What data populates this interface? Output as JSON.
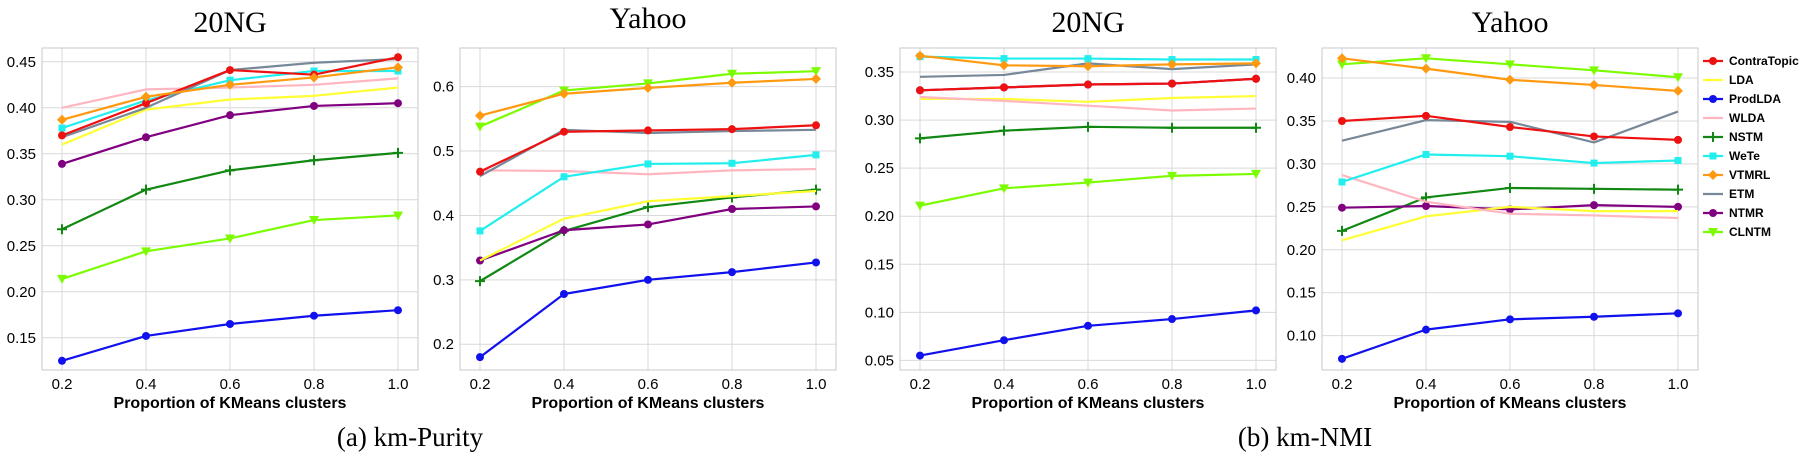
{
  "captions": [
    "(a) km-Purity",
    "(b) km-NMI"
  ],
  "legend": [
    {
      "name": "ContraTopic",
      "color": "#ee1111",
      "marker": "circle"
    },
    {
      "name": "LDA",
      "color": "#ffff33",
      "marker": "none"
    },
    {
      "name": "ProdLDA",
      "color": "#1111ee",
      "marker": "circle"
    },
    {
      "name": "WLDA",
      "color": "#ffb6c1",
      "marker": "none"
    },
    {
      "name": "NSTM",
      "color": "#118811",
      "marker": "plus"
    },
    {
      "name": "WeTe",
      "color": "#22eeee",
      "marker": "square"
    },
    {
      "name": "VTMRL",
      "color": "#ff9910",
      "marker": "diamond"
    },
    {
      "name": "ETM",
      "color": "#778899",
      "marker": "none"
    },
    {
      "name": "NTMR",
      "color": "#800080",
      "marker": "circle"
    },
    {
      "name": "CLNTM",
      "color": "#7cfc00",
      "marker": "triangle"
    }
  ],
  "chart_data": [
    {
      "type": "line",
      "title": "20NG",
      "xlabel": "Proportion of KMeans clusters",
      "ylabel": "",
      "x": [
        0.2,
        0.4,
        0.6,
        0.8,
        1.0
      ],
      "xticks": [
        "0.2",
        "0.4",
        "0.6",
        "0.8",
        "1.0"
      ],
      "ylim": [
        0.115,
        0.465
      ],
      "yticks": [
        "0.15",
        "0.20",
        "0.25",
        "0.30",
        "0.35",
        "0.40",
        "0.45"
      ],
      "grid": true,
      "series": [
        {
          "name": "ContraTopic",
          "values": [
            0.37,
            0.405,
            0.441,
            0.436,
            0.455
          ]
        },
        {
          "name": "LDA",
          "values": [
            0.36,
            0.398,
            0.409,
            0.413,
            0.422
          ]
        },
        {
          "name": "ProdLDA",
          "values": [
            0.125,
            0.152,
            0.165,
            0.174,
            0.18
          ]
        },
        {
          "name": "WLDA",
          "values": [
            0.4,
            0.42,
            0.422,
            0.425,
            0.432
          ]
        },
        {
          "name": "NSTM",
          "values": [
            0.268,
            0.311,
            0.332,
            0.343,
            0.351
          ]
        },
        {
          "name": "WeTe",
          "values": [
            0.378,
            0.408,
            0.43,
            0.44,
            0.44
          ]
        },
        {
          "name": "VTMRL",
          "values": [
            0.387,
            0.412,
            0.425,
            0.433,
            0.444
          ]
        },
        {
          "name": "ETM",
          "values": [
            0.368,
            0.4,
            0.441,
            0.449,
            0.453
          ]
        },
        {
          "name": "NTMR",
          "values": [
            0.339,
            0.368,
            0.392,
            0.402,
            0.405
          ]
        },
        {
          "name": "CLNTM",
          "values": [
            0.214,
            0.244,
            0.258,
            0.278,
            0.283
          ]
        }
      ]
    },
    {
      "type": "line",
      "title": "Yahoo",
      "xlabel": "Proportion of KMeans clusters",
      "ylabel": "",
      "x": [
        0.2,
        0.4,
        0.6,
        0.8,
        1.0
      ],
      "xticks": [
        "0.2",
        "0.4",
        "0.6",
        "0.8",
        "1.0"
      ],
      "ylim": [
        0.16,
        0.66
      ],
      "yticks": [
        "0.2",
        "0.3",
        "0.4",
        "0.5",
        "0.6"
      ],
      "grid": true,
      "series": [
        {
          "name": "ContraTopic",
          "values": [
            0.468,
            0.53,
            0.532,
            0.534,
            0.54
          ]
        },
        {
          "name": "LDA",
          "values": [
            0.33,
            0.395,
            0.422,
            0.43,
            0.438
          ]
        },
        {
          "name": "ProdLDA",
          "values": [
            0.18,
            0.278,
            0.3,
            0.312,
            0.327
          ]
        },
        {
          "name": "WLDA",
          "values": [
            0.47,
            0.469,
            0.464,
            0.47,
            0.472
          ]
        },
        {
          "name": "NSTM",
          "values": [
            0.298,
            0.376,
            0.413,
            0.428,
            0.44
          ]
        },
        {
          "name": "WeTe",
          "values": [
            0.376,
            0.46,
            0.48,
            0.481,
            0.494
          ]
        },
        {
          "name": "VTMRL",
          "values": [
            0.555,
            0.589,
            0.598,
            0.606,
            0.612
          ]
        },
        {
          "name": "ETM",
          "values": [
            0.461,
            0.533,
            0.528,
            0.531,
            0.533
          ]
        },
        {
          "name": "NTMR",
          "values": [
            0.33,
            0.377,
            0.386,
            0.41,
            0.414
          ]
        },
        {
          "name": "CLNTM",
          "values": [
            0.538,
            0.594,
            0.605,
            0.62,
            0.624
          ]
        }
      ]
    },
    {
      "type": "line",
      "title": "20NG",
      "xlabel": "Proportion of KMeans clusters",
      "ylabel": "",
      "x": [
        0.2,
        0.4,
        0.6,
        0.8,
        1.0
      ],
      "xticks": [
        "0.2",
        "0.4",
        "0.6",
        "0.8",
        "1.0"
      ],
      "ylim": [
        0.04,
        0.375
      ],
      "yticks": [
        "0.05",
        "0.10",
        "0.15",
        "0.20",
        "0.25",
        "0.30",
        "0.35"
      ],
      "grid": true,
      "series": [
        {
          "name": "ContraTopic",
          "values": [
            0.331,
            0.334,
            0.337,
            0.338,
            0.343
          ]
        },
        {
          "name": "LDA",
          "values": [
            0.322,
            0.322,
            0.319,
            0.323,
            0.325
          ]
        },
        {
          "name": "ProdLDA",
          "values": [
            0.055,
            0.071,
            0.086,
            0.093,
            0.102
          ]
        },
        {
          "name": "WLDA",
          "values": [
            0.324,
            0.32,
            0.315,
            0.31,
            0.312
          ]
        },
        {
          "name": "NSTM",
          "values": [
            0.281,
            0.289,
            0.293,
            0.292,
            0.292
          ]
        },
        {
          "name": "WeTe",
          "values": [
            0.366,
            0.364,
            0.364,
            0.363,
            0.363
          ]
        },
        {
          "name": "VTMRL",
          "values": [
            0.367,
            0.357,
            0.356,
            0.358,
            0.359
          ]
        },
        {
          "name": "ETM",
          "values": [
            0.345,
            0.347,
            0.359,
            0.353,
            0.358
          ]
        },
        {
          "name": "NTMR",
          "values": [
            0.331,
            0.334,
            0.337,
            0.338,
            0.343
          ]
        },
        {
          "name": "CLNTM",
          "values": [
            0.211,
            0.229,
            0.235,
            0.242,
            0.244
          ]
        }
      ]
    },
    {
      "type": "line",
      "title": "Yahoo",
      "xlabel": "Proportion of KMeans clusters",
      "ylabel": "",
      "x": [
        0.2,
        0.4,
        0.6,
        0.8,
        1.0
      ],
      "xticks": [
        "0.2",
        "0.4",
        "0.6",
        "0.8",
        "1.0"
      ],
      "ylim": [
        0.06,
        0.435
      ],
      "yticks": [
        "0.10",
        "0.15",
        "0.20",
        "0.25",
        "0.30",
        "0.35",
        "0.40"
      ],
      "grid": true,
      "series": [
        {
          "name": "ContraTopic",
          "values": [
            0.35,
            0.356,
            0.343,
            0.332,
            0.328
          ]
        },
        {
          "name": "LDA",
          "values": [
            0.211,
            0.239,
            0.25,
            0.245,
            0.245
          ]
        },
        {
          "name": "ProdLDA",
          "values": [
            0.073,
            0.107,
            0.119,
            0.122,
            0.126
          ]
        },
        {
          "name": "WLDA",
          "values": [
            0.287,
            0.256,
            0.242,
            0.24,
            0.237
          ]
        },
        {
          "name": "NSTM",
          "values": [
            0.222,
            0.261,
            0.272,
            0.271,
            0.27
          ]
        },
        {
          "name": "WeTe",
          "values": [
            0.279,
            0.311,
            0.309,
            0.301,
            0.304
          ]
        },
        {
          "name": "VTMRL",
          "values": [
            0.423,
            0.411,
            0.398,
            0.392,
            0.385
          ]
        },
        {
          "name": "ETM",
          "values": [
            0.327,
            0.351,
            0.349,
            0.325,
            0.361
          ]
        },
        {
          "name": "NTMR",
          "values": [
            0.249,
            0.251,
            0.247,
            0.252,
            0.25
          ]
        },
        {
          "name": "CLNTM",
          "values": [
            0.416,
            0.423,
            0.416,
            0.409,
            0.401
          ]
        }
      ]
    }
  ]
}
